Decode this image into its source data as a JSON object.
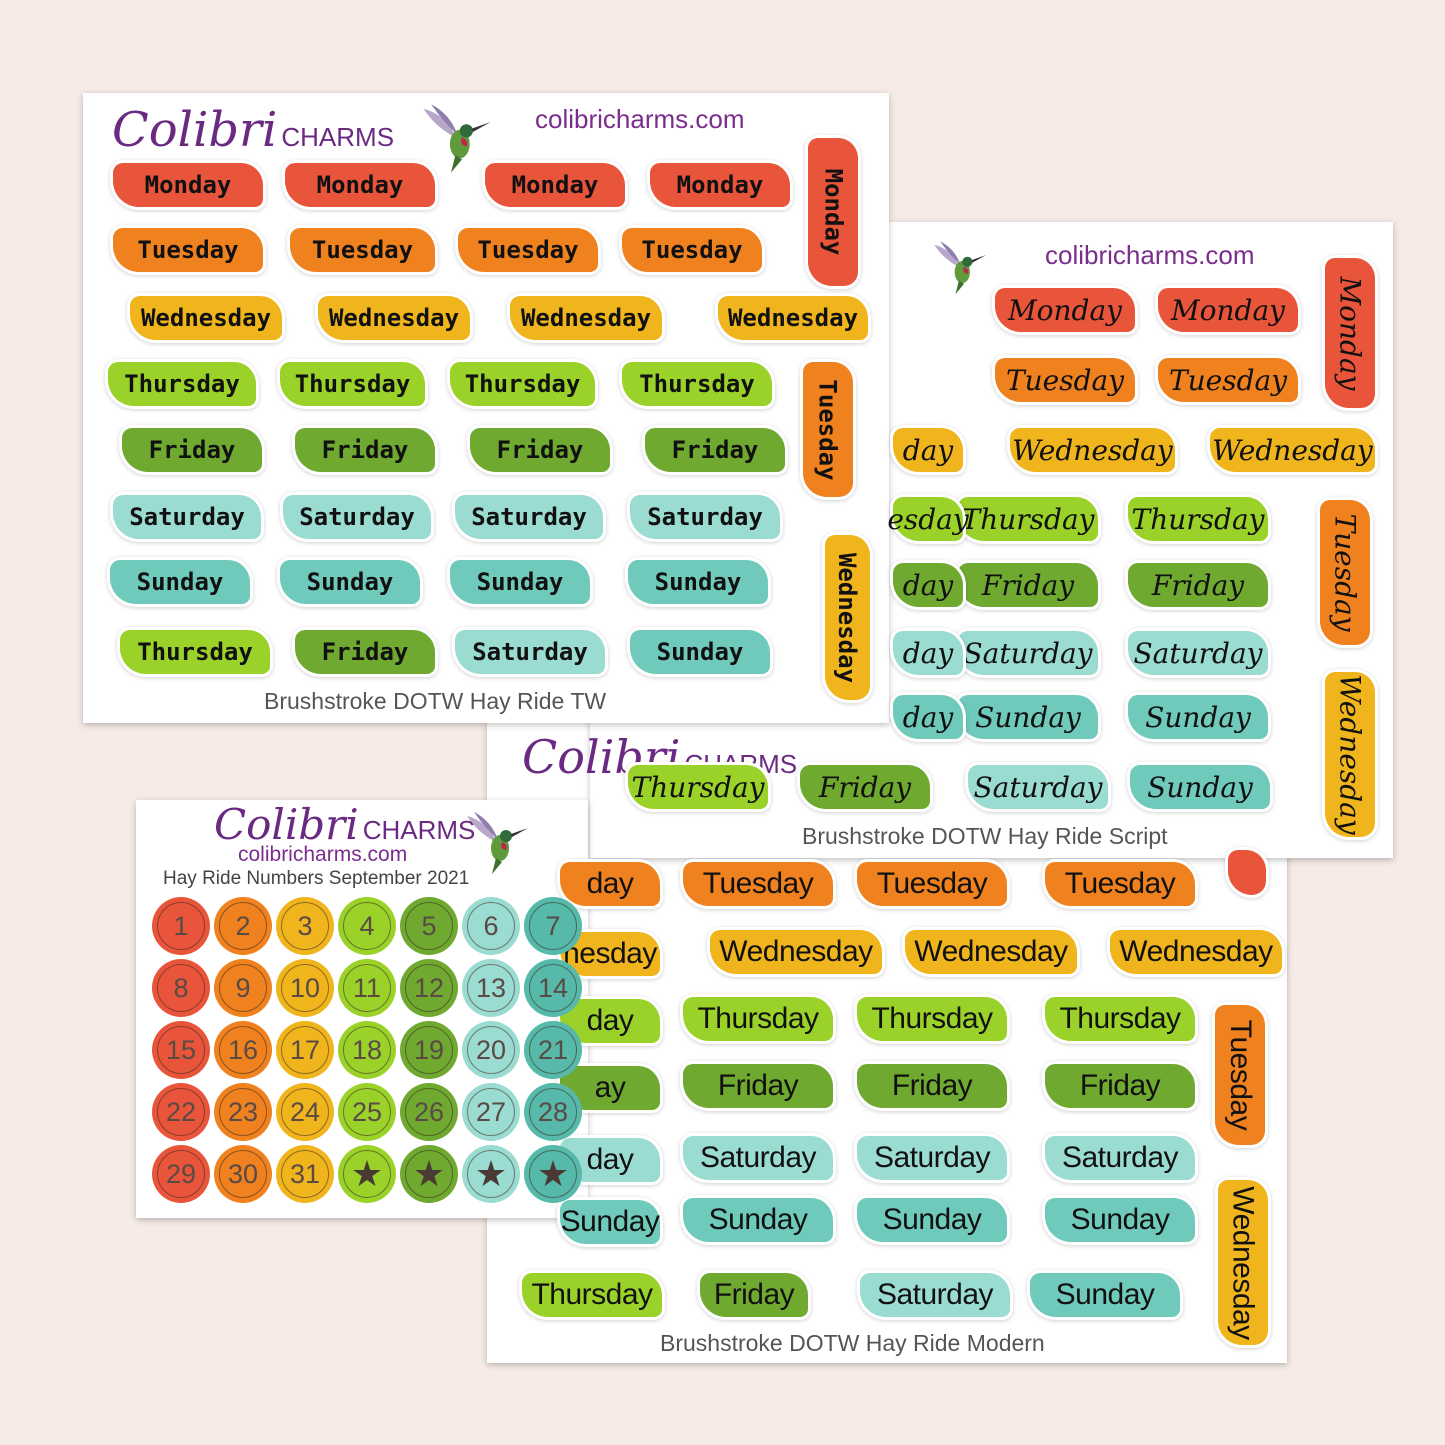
{
  "colors": {
    "red": "#e9553a",
    "orange": "#f0811f",
    "yellow": "#f0b51c",
    "lime": "#9bd22a",
    "green": "#6fa930",
    "mint": "#9bdcd2",
    "teal": "#6fcabc",
    "darkteal": "#56b9a9"
  },
  "brand": {
    "name": "Colibri",
    "suffix": "CHARMS",
    "url": "colibricharms.com"
  },
  "sheet_tw": {
    "caption": "Brushstroke DOTW Hay Ride TW",
    "rows": [
      [
        "Monday",
        "Monday",
        "Monday",
        "Monday"
      ],
      [
        "Tuesday",
        "Tuesday",
        "Tuesday",
        "Tuesday"
      ],
      [
        "Wednesday",
        "Wednesday",
        "Wednesday",
        "Wednesday"
      ],
      [
        "Thursday",
        "Thursday",
        "Thursday",
        "Thursday"
      ],
      [
        "Friday",
        "Friday",
        "Friday",
        "Friday"
      ],
      [
        "Saturday",
        "Saturday",
        "Saturday",
        "Saturday"
      ],
      [
        "Sunday",
        "Sunday",
        "Sunday",
        "Sunday"
      ],
      [
        "Thursday",
        "Friday",
        "Saturday",
        "Sunday"
      ]
    ],
    "vertical": [
      "Monday",
      "Tuesday",
      "Wednesday"
    ]
  },
  "sheet_script": {
    "caption": "Brushstroke DOTW Hay Ride Script",
    "rows": [
      [
        "Monday",
        "Monday"
      ],
      [
        "Tuesday",
        "Tuesday"
      ],
      [
        "Wednesday",
        "Wednesday"
      ],
      [
        "Thursday",
        "Thursday"
      ],
      [
        "Friday",
        "Friday"
      ],
      [
        "Saturday",
        "Saturday"
      ],
      [
        "Sunday",
        "Sunday"
      ],
      [
        "Thursday",
        "Friday",
        "Saturday",
        "Sunday"
      ]
    ],
    "partial_left": [
      "day",
      "esday",
      "day",
      "day",
      "day"
    ],
    "vertical": [
      "Monday",
      "Tuesday",
      "Wednesday"
    ]
  },
  "sheet_modern": {
    "caption": "Brushstroke DOTW Hay Ride Modern",
    "rows": [
      [
        "Tuesday",
        "Tuesday",
        "Tuesday"
      ],
      [
        "Wednesday",
        "Wednesday",
        "Wednesday"
      ],
      [
        "Thursday",
        "Thursday",
        "Thursday"
      ],
      [
        "Friday",
        "Friday",
        "Friday"
      ],
      [
        "Saturday",
        "Saturday",
        "Saturday"
      ],
      [
        "Sunday",
        "Sunday",
        "Sunday"
      ],
      [
        "Thursday",
        "Friday",
        "Saturday",
        "Sunday"
      ]
    ],
    "partial_left": [
      "day",
      "nesday",
      "day",
      "ay",
      "day",
      "Sunday"
    ],
    "vertical": [
      "Tuesday",
      "Wednesday"
    ]
  },
  "sheet_numbers": {
    "title": "Hay Ride Numbers September 2021",
    "numbers": [
      "1",
      "2",
      "3",
      "4",
      "5",
      "6",
      "7",
      "8",
      "9",
      "10",
      "11",
      "12",
      "13",
      "14",
      "15",
      "16",
      "17",
      "18",
      "19",
      "20",
      "21",
      "22",
      "23",
      "24",
      "25",
      "26",
      "27",
      "28",
      "29",
      "30",
      "31",
      "★",
      "★",
      "★",
      "★"
    ]
  }
}
